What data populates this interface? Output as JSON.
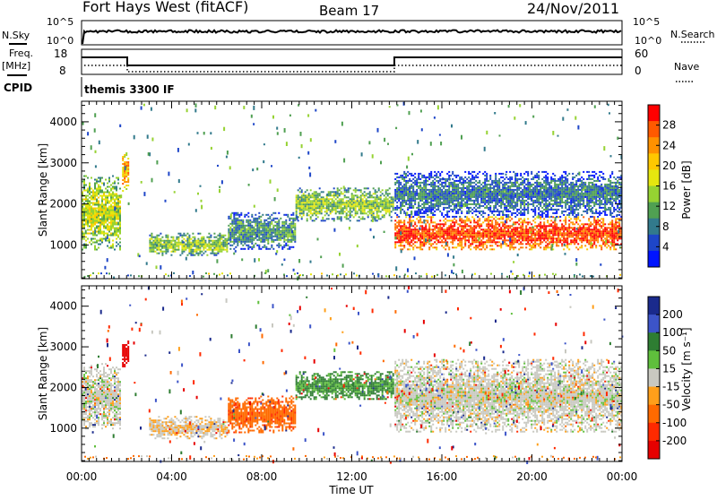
{
  "header": {
    "station": "Fort Hays West (fitACF)",
    "beam": "Beam 17",
    "date": "24/Nov/2011"
  },
  "status": {
    "nsky_label": "N.Sky",
    "nsky_ticks": [
      "10^5",
      "10^0"
    ],
    "nsearch_label": "N.Search",
    "nsearch_ticks": [
      "10^5",
      "10^0"
    ],
    "freq_label": "Freq.",
    "freq_unit": "[MHz]",
    "freq_ticks": [
      "18",
      "8"
    ],
    "nave_label": "Nave",
    "nave_ticks": [
      "60",
      "0"
    ],
    "cpid_label": "CPID",
    "cpid_text": "themis 3300 IF"
  },
  "panels": {
    "ylabel": "Slant Range [km]",
    "yticks": [
      "4000",
      "3000",
      "2000",
      "1000"
    ],
    "xticks": [
      "00:00",
      "04:00",
      "08:00",
      "12:00",
      "16:00",
      "20:00",
      "00:00"
    ],
    "xlabel": "Time UT"
  },
  "colorbars": {
    "power": {
      "label": "Power [dB]",
      "ticks": [
        "28",
        "24",
        "20",
        "16",
        "12",
        "8",
        "4"
      ],
      "colors": [
        "#ff0000",
        "#ff5a00",
        "#ff9100",
        "#ffc800",
        "#e5e60f",
        "#96d232",
        "#50a052",
        "#327a8c",
        "#1e46c8",
        "#0014ff"
      ]
    },
    "velocity": {
      "label": "Velocity [m s⁻¹]",
      "ticks": [
        "200",
        "100",
        "50",
        "15",
        "-15",
        "-50",
        "-100",
        "-200"
      ],
      "colors": [
        "#1a2a8c",
        "#3c54c8",
        "#2e7d32",
        "#5fbf3c",
        "#c8c8c0",
        "#ff9f1a",
        "#ff6a00",
        "#ff2a00",
        "#e60000"
      ]
    }
  },
  "chart_data": [
    {
      "type": "heatmap",
      "title": "Power",
      "xlabel": "Time UT",
      "ylabel": "Slant Range [km]",
      "xlim": [
        0,
        24
      ],
      "ylim": [
        180,
        4500
      ],
      "colorbar_label": "Power [dB]",
      "colorbar_ticks": [
        4,
        8,
        12,
        16,
        20,
        24,
        28
      ],
      "echo_regions": [
        {
          "t_start": 0.0,
          "t_end": 1.7,
          "range_min": 900,
          "range_max": 2700,
          "power_db": 16
        },
        {
          "t_start": 1.8,
          "t_end": 2.1,
          "range_min": 2300,
          "range_max": 3300,
          "power_db": 22
        },
        {
          "t_start": 3.0,
          "t_end": 6.5,
          "range_min": 750,
          "range_max": 1300,
          "power_db": 14
        },
        {
          "t_start": 6.5,
          "t_end": 9.5,
          "range_min": 900,
          "range_max": 1800,
          "power_db": 10
        },
        {
          "t_start": 9.5,
          "t_end": 13.8,
          "range_min": 1600,
          "range_max": 2400,
          "power_db": 14
        },
        {
          "t_start": 13.9,
          "t_end": 24.0,
          "range_min": 900,
          "range_max": 1700,
          "power_db": 28
        },
        {
          "t_start": 13.9,
          "t_end": 24.0,
          "range_min": 1700,
          "range_max": 2800,
          "power_db": 8
        }
      ]
    },
    {
      "type": "heatmap",
      "title": "Velocity",
      "xlabel": "Time UT",
      "ylabel": "Slant Range [km]",
      "xlim": [
        0,
        24
      ],
      "ylim": [
        180,
        4500
      ],
      "colorbar_label": "Velocity [m s⁻¹]",
      "colorbar_ticks": [
        -200,
        -100,
        -50,
        -15,
        15,
        50,
        100,
        200
      ],
      "echo_regions": [
        {
          "t_start": 0.0,
          "t_end": 1.7,
          "range_min": 1000,
          "range_max": 2600,
          "velocity": 0
        },
        {
          "t_start": 1.8,
          "t_end": 2.1,
          "range_min": 2500,
          "range_max": 3200,
          "velocity": -250
        },
        {
          "t_start": 3.0,
          "t_end": 6.5,
          "range_min": 750,
          "range_max": 1300,
          "velocity": -10
        },
        {
          "t_start": 6.5,
          "t_end": 9.5,
          "range_min": 900,
          "range_max": 1800,
          "velocity": -60
        },
        {
          "t_start": 9.5,
          "t_end": 13.8,
          "range_min": 1700,
          "range_max": 2400,
          "velocity": 40
        },
        {
          "t_start": 13.9,
          "t_end": 24.0,
          "range_min": 900,
          "range_max": 2700,
          "velocity": 0
        }
      ]
    }
  ]
}
